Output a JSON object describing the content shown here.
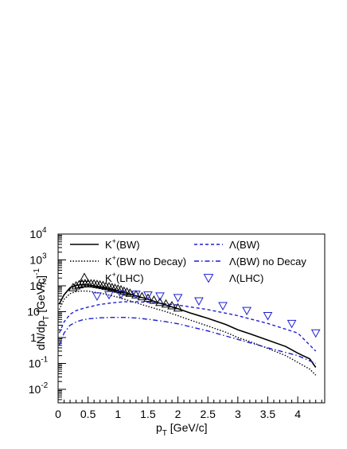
{
  "chart_data": {
    "type": "line",
    "log_y": true,
    "xlim": [
      0,
      4.45
    ],
    "ylim": [
      0.003,
      10000
    ],
    "x_ticks": [
      {
        "value": 0,
        "label": "0"
      },
      {
        "value": 0.5,
        "label": "0.5"
      },
      {
        "value": 1,
        "label": "1"
      },
      {
        "value": 1.5,
        "label": "1.5"
      },
      {
        "value": 2,
        "label": "2"
      },
      {
        "value": 2.5,
        "label": "2.5"
      },
      {
        "value": 3,
        "label": "3"
      },
      {
        "value": 3.5,
        "label": "3.5"
      },
      {
        "value": 4,
        "label": "4"
      }
    ],
    "y_ticks": [
      {
        "value": 0.01,
        "base": "10",
        "exp": "-2"
      },
      {
        "value": 0.1,
        "base": "10",
        "exp": "-1"
      },
      {
        "value": 1,
        "base": "1",
        "exp": ""
      },
      {
        "value": 10,
        "base": "10",
        "exp": ""
      },
      {
        "value": 100,
        "base": "10",
        "exp": "2"
      },
      {
        "value": 1000,
        "base": "10",
        "exp": "3"
      },
      {
        "value": 10000,
        "base": "10",
        "exp": "4"
      }
    ],
    "xlabel": {
      "main": "p",
      "sub": "T",
      "rest": " [GeV/c]"
    },
    "ylabel": {
      "a": "dN/dp",
      "sub": "T",
      "b": "  [GeV/c]",
      "sup": "-1"
    },
    "legend_position": "top",
    "series": [
      {
        "name_base": "K",
        "name_sup": "+",
        "name_rest": "(BW)",
        "style": "solid",
        "color": "#000000",
        "x": [
          0.02,
          0.1,
          0.2,
          0.3,
          0.4,
          0.5,
          0.6,
          0.8,
          1.0,
          1.2,
          1.5,
          1.8,
          2.0,
          2.2,
          2.5,
          2.8,
          3.0,
          3.2,
          3.5,
          3.8,
          4.0,
          4.2,
          4.3
        ],
        "y": [
          20,
          45,
          85,
          105,
          110,
          108,
          100,
          85,
          65,
          48,
          30,
          18,
          13,
          9,
          5.5,
          3.2,
          2.0,
          1.4,
          0.8,
          0.45,
          0.25,
          0.15,
          0.07
        ]
      },
      {
        "name_base": "K",
        "name_sup": "+",
        "name_rest": "(BW no Decay)",
        "style": "dotted",
        "color": "#000000",
        "x": [
          0.02,
          0.1,
          0.2,
          0.3,
          0.4,
          0.5,
          0.6,
          0.8,
          1.0,
          1.2,
          1.5,
          1.8,
          2.0,
          2.2,
          2.5,
          2.8,
          3.0,
          3.2,
          3.5,
          3.8,
          4.0,
          4.2,
          4.3
        ],
        "y": [
          12,
          30,
          50,
          60,
          63,
          62,
          57,
          47,
          36,
          26,
          16,
          10,
          7,
          4.8,
          2.8,
          1.6,
          1.0,
          0.7,
          0.38,
          0.2,
          0.11,
          0.06,
          0.035
        ]
      },
      {
        "name_base": "Λ",
        "name_sup": "",
        "name_rest": "(BW)",
        "style": "dashed",
        "color": "#1f1fd1",
        "x": [
          0.02,
          0.1,
          0.2,
          0.3,
          0.4,
          0.5,
          0.7,
          0.9,
          1.1,
          1.3,
          1.5,
          1.8,
          2.0,
          2.5,
          3.0,
          3.5,
          4.0,
          4.3
        ],
        "y": [
          1.5,
          4,
          8,
          11,
          13,
          15,
          19,
          22,
          24,
          24,
          23,
          20,
          18,
          12,
          7,
          3.5,
          1.5,
          0.3
        ]
      },
      {
        "name_base": "Λ",
        "name_sup": "",
        "name_rest": "(BW) no Decay",
        "style": "dashdot",
        "color": "#1f1fd1",
        "x": [
          0.02,
          0.1,
          0.2,
          0.3,
          0.4,
          0.5,
          0.7,
          0.9,
          1.1,
          1.3,
          1.5,
          1.8,
          2.0,
          2.5,
          3.0,
          3.5,
          4.0,
          4.3
        ],
        "y": [
          0.5,
          1.5,
          3,
          4,
          4.8,
          5.3,
          5.8,
          6,
          6,
          5.7,
          5.1,
          4.1,
          3.4,
          1.8,
          0.85,
          0.4,
          0.2,
          0.1
        ]
      },
      {
        "name_base": "K",
        "name_sup": "+",
        "name_rest": "(LHC)",
        "style": "marker-triangle-up",
        "color": "#000000",
        "x": [
          0.25,
          0.3,
          0.35,
          0.4,
          0.45,
          0.5,
          0.55,
          0.6,
          0.65,
          0.7,
          0.75,
          0.8,
          0.85,
          0.9,
          0.95,
          1.0,
          1.05,
          1.1,
          1.15,
          1.2,
          1.3,
          1.4,
          1.5,
          1.6,
          1.7,
          1.8,
          1.9,
          2.0
        ],
        "y": [
          85,
          100,
          110,
          118,
          122,
          122,
          120,
          118,
          113,
          108,
          103,
          96,
          92,
          86,
          80,
          75,
          70,
          62,
          57,
          52,
          45,
          38,
          33,
          28,
          23,
          20,
          17,
          14
        ]
      },
      {
        "name_base": "Λ",
        "name_sup": "",
        "name_rest": "(LHC)",
        "style": "marker-triangle-down",
        "color": "#1f1fd1",
        "x": [
          0.65,
          0.85,
          1.05,
          1.3,
          1.5,
          1.7,
          2.0,
          2.35,
          2.75,
          3.15,
          3.5,
          3.9,
          4.3
        ],
        "y": [
          40,
          45,
          47,
          47,
          44,
          40,
          35,
          26,
          17,
          11,
          7,
          3.5,
          1.5
        ]
      }
    ]
  }
}
